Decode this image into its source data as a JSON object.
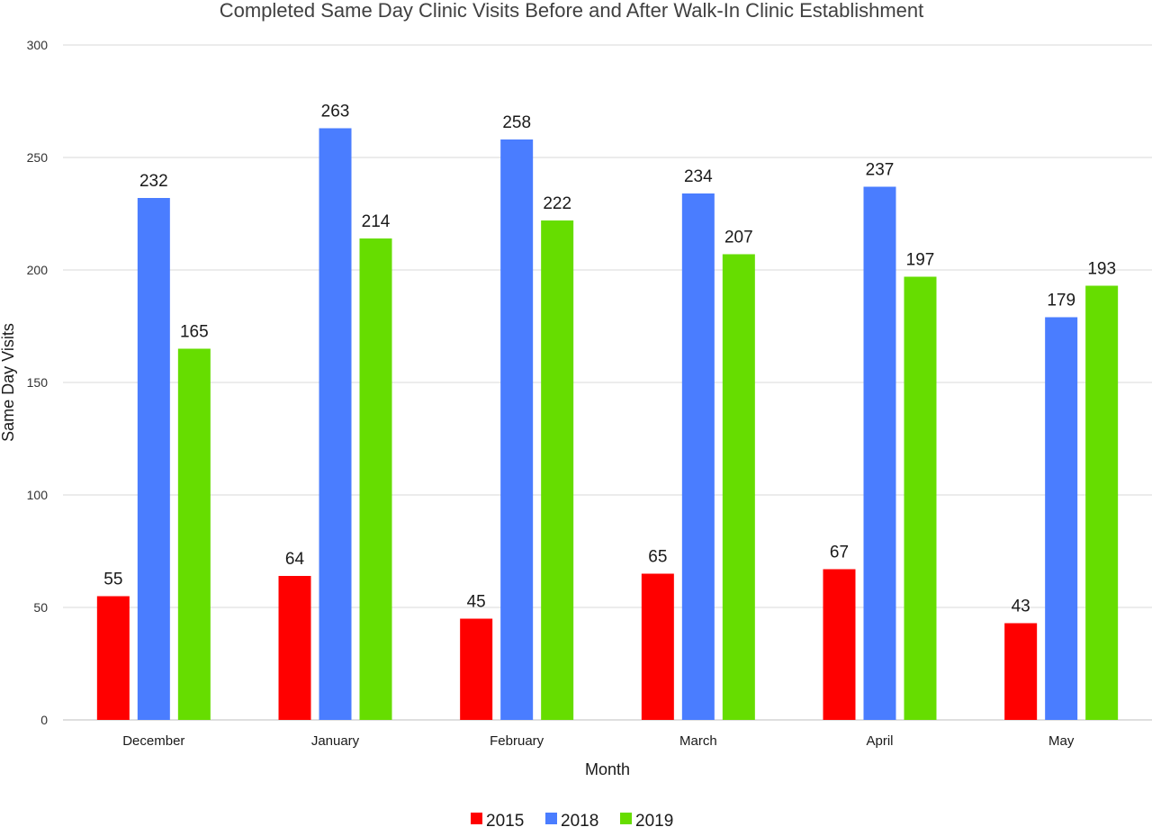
{
  "chart_data": {
    "type": "bar",
    "title": "Completed Same Day Clinic Visits Before and After Walk-In Clinic Establishment",
    "xlabel": "Month",
    "ylabel": "Same Day Visits",
    "categories": [
      "December",
      "January",
      "February",
      "March",
      "April",
      "May"
    ],
    "series": [
      {
        "name": "2015",
        "color": "#ff0000",
        "values": [
          55,
          64,
          45,
          65,
          67,
          43
        ]
      },
      {
        "name": "2018",
        "color": "#4a7dff",
        "values": [
          232,
          263,
          258,
          234,
          237,
          179
        ]
      },
      {
        "name": "2019",
        "color": "#66dd00",
        "values": [
          165,
          214,
          222,
          207,
          197,
          193
        ]
      }
    ],
    "ylim": [
      0,
      300
    ],
    "yticks": [
      0,
      50,
      100,
      150,
      200,
      250,
      300
    ],
    "grid": true,
    "legend_position": "bottom",
    "data_labels": true
  }
}
